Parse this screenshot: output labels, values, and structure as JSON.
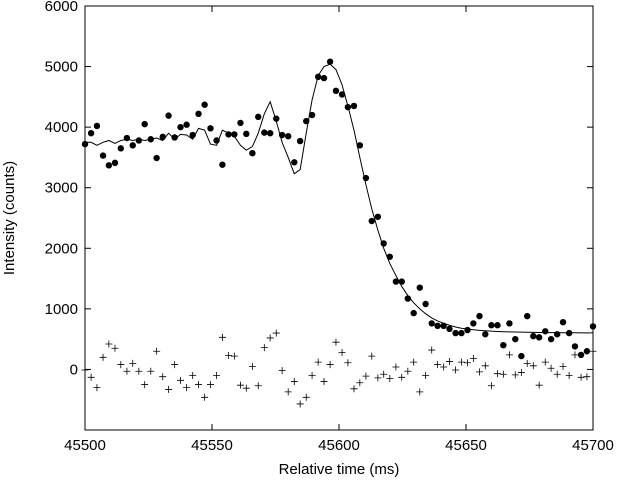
{
  "chart_data": {
    "type": "scatter",
    "x_label": "Relative time (ms)",
    "y_label": "Intensity (counts)",
    "x": [
      45500,
      45502.4,
      45504.7,
      45507.1,
      45509.4,
      45511.8,
      45514.1,
      45516.5,
      45518.8,
      45521.2,
      45523.5,
      45525.9,
      45528.2,
      45530.6,
      45532.9,
      45535.3,
      45537.6,
      45540,
      45542.4,
      45544.7,
      45547.1,
      45549.4,
      45551.8,
      45554.1,
      45556.5,
      45558.8,
      45561.2,
      45563.5,
      45565.9,
      45568.2,
      45570.6,
      45572.9,
      45575.3,
      45577.6,
      45580,
      45582.4,
      45584.7,
      45587.1,
      45589.4,
      45591.8,
      45594.1,
      45596.5,
      45598.8,
      45601.2,
      45603.5,
      45605.9,
      45608.2,
      45610.6,
      45612.9,
      45615.3,
      45617.6,
      45620,
      45622.4,
      45624.7,
      45627.1,
      45629.4,
      45631.8,
      45634.1,
      45636.5,
      45638.8,
      45641.2,
      45643.5,
      45645.9,
      45648.2,
      45650.6,
      45652.9,
      45655.3,
      45657.6,
      45660,
      45662.4,
      45664.7,
      45667.1,
      45669.4,
      45671.8,
      45674.1,
      45676.5,
      45678.8,
      45681.2,
      45683.5,
      45685.9,
      45688.2,
      45690.6,
      45692.9,
      45695.3,
      45697.6,
      45700
    ],
    "series": [
      {
        "marker": "circle",
        "color": "#000000",
        "values": [
          3720,
          3900,
          4020,
          3530,
          3370,
          3410,
          3650,
          3820,
          3700,
          3780,
          4050,
          3800,
          3490,
          3840,
          4190,
          3830,
          4000,
          4040,
          3870,
          4220,
          4370,
          3980,
          3780,
          3380,
          3880,
          3880,
          4070,
          3890,
          3570,
          4170,
          3910,
          3900,
          4140,
          3870,
          3850,
          3420,
          3770,
          4100,
          4200,
          4830,
          4810,
          5080,
          4600,
          4540,
          4330,
          4350,
          3700,
          3160,
          2450,
          2520,
          2080,
          1860,
          1450,
          1450,
          1170,
          930,
          1350,
          1080,
          760,
          720,
          720,
          670,
          600,
          600,
          650,
          760,
          880,
          580,
          730,
          730,
          400,
          760,
          500,
          220,
          880,
          550,
          530,
          630,
          500,
          580,
          780,
          600,
          380,
          240,
          300,
          710
        ]
      },
      {
        "marker": "plus",
        "color": "#000000",
        "values": [
          -10,
          -130,
          -300,
          200,
          420,
          350,
          80,
          -30,
          100,
          -30,
          -250,
          -30,
          300,
          -120,
          -330,
          80,
          -180,
          -300,
          -100,
          -250,
          -460,
          -250,
          -100,
          530,
          230,
          220,
          -260,
          -310,
          50,
          -270,
          360,
          520,
          600,
          -20,
          -370,
          -200,
          -570,
          -460,
          -100,
          120,
          -200,
          80,
          450,
          280,
          110,
          -320,
          -220,
          -110,
          220,
          -140,
          -80,
          -150,
          40,
          -130,
          -30,
          120,
          -370,
          -100,
          320,
          80,
          40,
          130,
          -10,
          120,
          110,
          180,
          -40,
          60,
          -270,
          -70,
          -80,
          240,
          -90,
          -50,
          100,
          60,
          -260,
          120,
          20,
          -80,
          50,
          -100,
          240,
          -130,
          -120,
          300
        ]
      },
      {
        "marker": "line",
        "color": "#000000",
        "values": [
          3750,
          3750,
          3700,
          3750,
          3780,
          3730,
          3780,
          3800,
          3780,
          3800,
          3780,
          3800,
          3820,
          3780,
          3900,
          3800,
          3880,
          3870,
          3800,
          3980,
          3950,
          3720,
          3700,
          3950,
          3900,
          3850,
          3700,
          3620,
          3680,
          3900,
          4220,
          4420,
          4100,
          3750,
          3500,
          3230,
          3300,
          3900,
          4450,
          4850,
          5000,
          5040,
          4950,
          4700,
          4350,
          3950,
          3500,
          3050,
          2650,
          2300,
          2000,
          1750,
          1550,
          1370,
          1220,
          1100,
          1000,
          920,
          850,
          800,
          760,
          730,
          700,
          680,
          665,
          655,
          645,
          638,
          632,
          627,
          623,
          620,
          617,
          615,
          613,
          611,
          610,
          609,
          608,
          607,
          606,
          605,
          605,
          604,
          604,
          604
        ]
      }
    ],
    "xlim": [
      45500,
      45700
    ],
    "xticks": [
      45500,
      45550,
      45600,
      45650,
      45700
    ],
    "ylim": [
      -1000,
      6000
    ],
    "yticks": [
      0,
      1000,
      2000,
      3000,
      4000,
      5000,
      6000
    ]
  }
}
